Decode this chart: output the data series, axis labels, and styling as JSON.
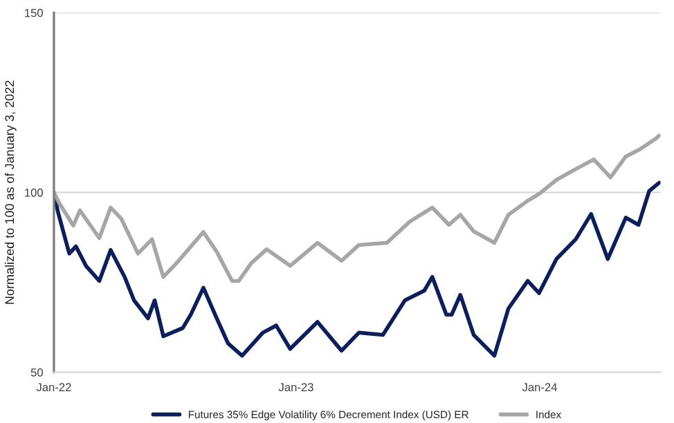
{
  "chart_data": {
    "type": "line",
    "ylabel": "Normalized to 100 as of January 3, 2022",
    "xlim": [
      "2022-01-03",
      "2024-06-30"
    ],
    "xticks": [
      {
        "value": "2022-01-03",
        "label": "Jan-22"
      },
      {
        "value": "2023-01-01",
        "label": "Jan-23"
      },
      {
        "value": "2024-01-01",
        "label": "Jan-24"
      }
    ],
    "ylim": [
      50,
      150
    ],
    "yticks": [
      50,
      100,
      150
    ],
    "grid": "y",
    "legend": "bottom",
    "marker": "none",
    "line_style": "solid",
    "series": [
      {
        "name": "Futures 35% Edge Volatility 6% Decrement Index (USD) ER",
        "color": "#0c1f5c",
        "x": [
          "2022-01-03",
          "2022-01-09",
          "2022-01-26",
          "2022-02-05",
          "2022-02-20",
          "2022-03-12",
          "2022-03-29",
          "2022-04-19",
          "2022-05-03",
          "2022-05-24",
          "2022-06-03",
          "2022-06-16",
          "2022-07-15",
          "2022-07-27",
          "2022-08-15",
          "2022-09-04",
          "2022-09-21",
          "2022-10-12",
          "2022-11-12",
          "2022-12-02",
          "2022-12-23",
          "2023-02-02",
          "2023-03-10",
          "2023-04-05",
          "2023-05-11",
          "2023-06-13",
          "2023-07-12",
          "2023-07-24",
          "2023-08-14",
          "2023-08-22",
          "2023-09-04",
          "2023-09-24",
          "2023-10-25",
          "2023-11-15",
          "2023-12-14",
          "2023-12-31",
          "2024-01-26",
          "2024-02-24",
          "2024-03-18",
          "2024-04-12",
          "2024-05-09",
          "2024-05-28",
          "2024-06-13",
          "2024-06-28"
        ],
        "values": [
          100,
          94.6,
          83,
          85,
          79.6,
          75.4,
          84,
          76.5,
          70,
          65,
          70,
          60,
          62.3,
          66,
          73.5,
          65,
          58,
          54.6,
          61,
          63,
          56.5,
          64,
          56,
          61,
          60.4,
          70,
          72.7,
          76.5,
          66,
          66,
          71.5,
          60.4,
          54.6,
          67.7,
          75.4,
          72,
          81.5,
          87,
          94,
          81.5,
          93,
          91,
          100.4,
          102.7
        ]
      },
      {
        "name": "Index",
        "color": "#a6a6a6",
        "x": [
          "2022-01-03",
          "2022-01-11",
          "2022-02-01",
          "2022-02-11",
          "2022-03-12",
          "2022-03-29",
          "2022-04-14",
          "2022-05-09",
          "2022-05-30",
          "2022-06-16",
          "2022-07-06",
          "2022-08-15",
          "2022-09-04",
          "2022-09-27",
          "2022-10-07",
          "2022-10-26",
          "2022-11-18",
          "2022-12-23",
          "2023-02-02",
          "2023-03-10",
          "2023-04-05",
          "2023-05-17",
          "2023-06-21",
          "2023-07-24",
          "2023-08-18",
          "2023-09-04",
          "2023-09-24",
          "2023-10-25",
          "2023-11-15",
          "2023-12-14",
          "2023-12-31",
          "2024-01-26",
          "2024-02-24",
          "2024-03-22",
          "2024-04-16",
          "2024-05-09",
          "2024-05-30",
          "2024-06-23",
          "2024-06-28"
        ],
        "values": [
          100,
          97,
          90.8,
          95,
          87.3,
          95.8,
          92.7,
          83,
          87,
          76.5,
          80.4,
          89,
          83.5,
          75.4,
          75.4,
          80.4,
          84.2,
          79.6,
          86,
          81,
          85.4,
          86,
          92,
          95.8,
          91,
          93.8,
          89.2,
          86,
          93.8,
          97.7,
          99.6,
          103.5,
          106.5,
          109.2,
          104.2,
          110,
          112,
          115,
          115.8
        ]
      }
    ]
  }
}
